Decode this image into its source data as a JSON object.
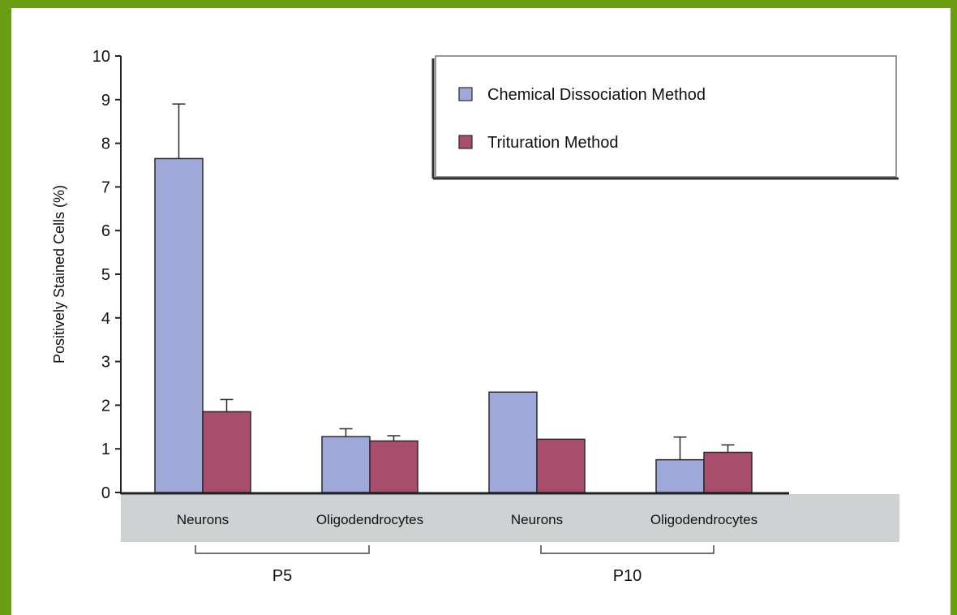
{
  "chart_data": {
    "type": "bar",
    "title": "",
    "xlabel": "",
    "ylabel": "Positively Stained Cells (%)",
    "ylim": [
      0,
      10
    ],
    "yticks": [
      "0",
      "1",
      "2",
      "3",
      "4",
      "5",
      "6",
      "7",
      "8",
      "9",
      "10"
    ],
    "categories": [
      "Neurons",
      "Oligodendrocytes",
      "Neurons",
      "Oligodendrocytes"
    ],
    "groups": [
      {
        "label": "P5",
        "categories": [
          0,
          1
        ]
      },
      {
        "label": "P10",
        "categories": [
          2,
          3
        ]
      }
    ],
    "series": [
      {
        "name": "Chemical Dissociation Method",
        "color": "#9ea8d9",
        "values": [
          7.65,
          1.28,
          2.3,
          0.75
        ],
        "error": [
          1.25,
          0.18,
          0,
          0.52
        ]
      },
      {
        "name": "Trituration Method",
        "color": "#a84d6b",
        "values": [
          1.85,
          1.18,
          1.22,
          0.92
        ],
        "error": [
          0.28,
          0.12,
          0,
          0.17
        ]
      }
    ],
    "legend_position": "top-right",
    "grid": false
  }
}
